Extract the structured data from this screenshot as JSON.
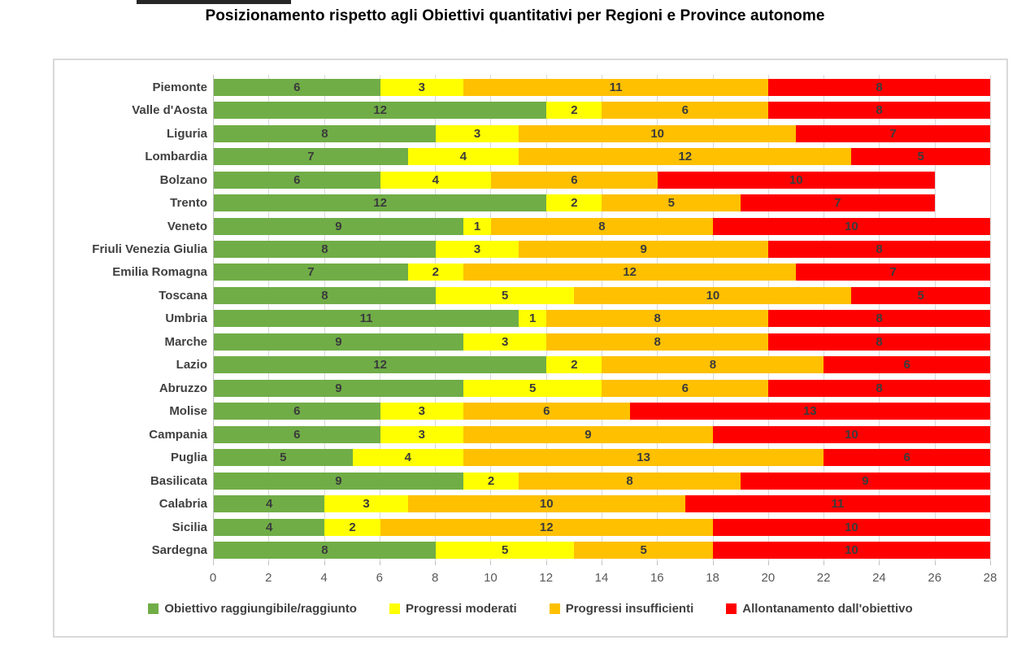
{
  "title": "Posizionamento rispetto agli Obiettivi quantitativi per Regioni e Province autonome",
  "decor": {
    "top_bar_color": "#262626"
  },
  "chart_data": {
    "type": "bar",
    "orientation": "horizontal",
    "stacked": true,
    "title": "Posizionamento rispetto agli Obiettivi quantitativi per Regioni e Province autonome",
    "xlabel": "",
    "ylabel": "",
    "xlim": [
      0,
      28
    ],
    "x_ticks": [
      0,
      2,
      4,
      6,
      8,
      10,
      12,
      14,
      16,
      18,
      20,
      22,
      24,
      26,
      28
    ],
    "grid": true,
    "gridline_color": "#d9d9d9",
    "legend_position": "bottom",
    "categories": [
      "Piemonte",
      "Valle d'Aosta",
      "Liguria",
      "Lombardia",
      "Bolzano",
      "Trento",
      "Veneto",
      "Friuli Venezia Giulia",
      "Emilia Romagna",
      "Toscana",
      "Umbria",
      "Marche",
      "Lazio",
      "Abruzzo",
      "Molise",
      "Campania",
      "Puglia",
      "Basilicata",
      "Calabria",
      "Sicilia",
      "Sardegna"
    ],
    "series": [
      {
        "name": "Obiettivo raggiungibile/raggiunto",
        "color": "#70AD47",
        "values": [
          6,
          12,
          8,
          7,
          6,
          12,
          9,
          8,
          7,
          8,
          11,
          9,
          12,
          9,
          6,
          6,
          5,
          9,
          4,
          4,
          8
        ]
      },
      {
        "name": "Progressi moderati",
        "color": "#FFFF00",
        "values": [
          3,
          2,
          3,
          4,
          4,
          2,
          1,
          3,
          2,
          5,
          1,
          3,
          2,
          5,
          3,
          3,
          4,
          2,
          3,
          2,
          5
        ]
      },
      {
        "name": "Progressi insufficienti",
        "color": "#FFC000",
        "values": [
          11,
          6,
          10,
          12,
          6,
          5,
          8,
          9,
          12,
          10,
          8,
          8,
          8,
          6,
          6,
          9,
          13,
          8,
          10,
          12,
          5
        ]
      },
      {
        "name": "Allontanamento dall'obiettivo",
        "color": "#FF0000",
        "values": [
          8,
          8,
          7,
          5,
          10,
          7,
          10,
          8,
          7,
          5,
          8,
          8,
          6,
          8,
          13,
          10,
          6,
          9,
          11,
          10,
          10
        ]
      }
    ]
  }
}
